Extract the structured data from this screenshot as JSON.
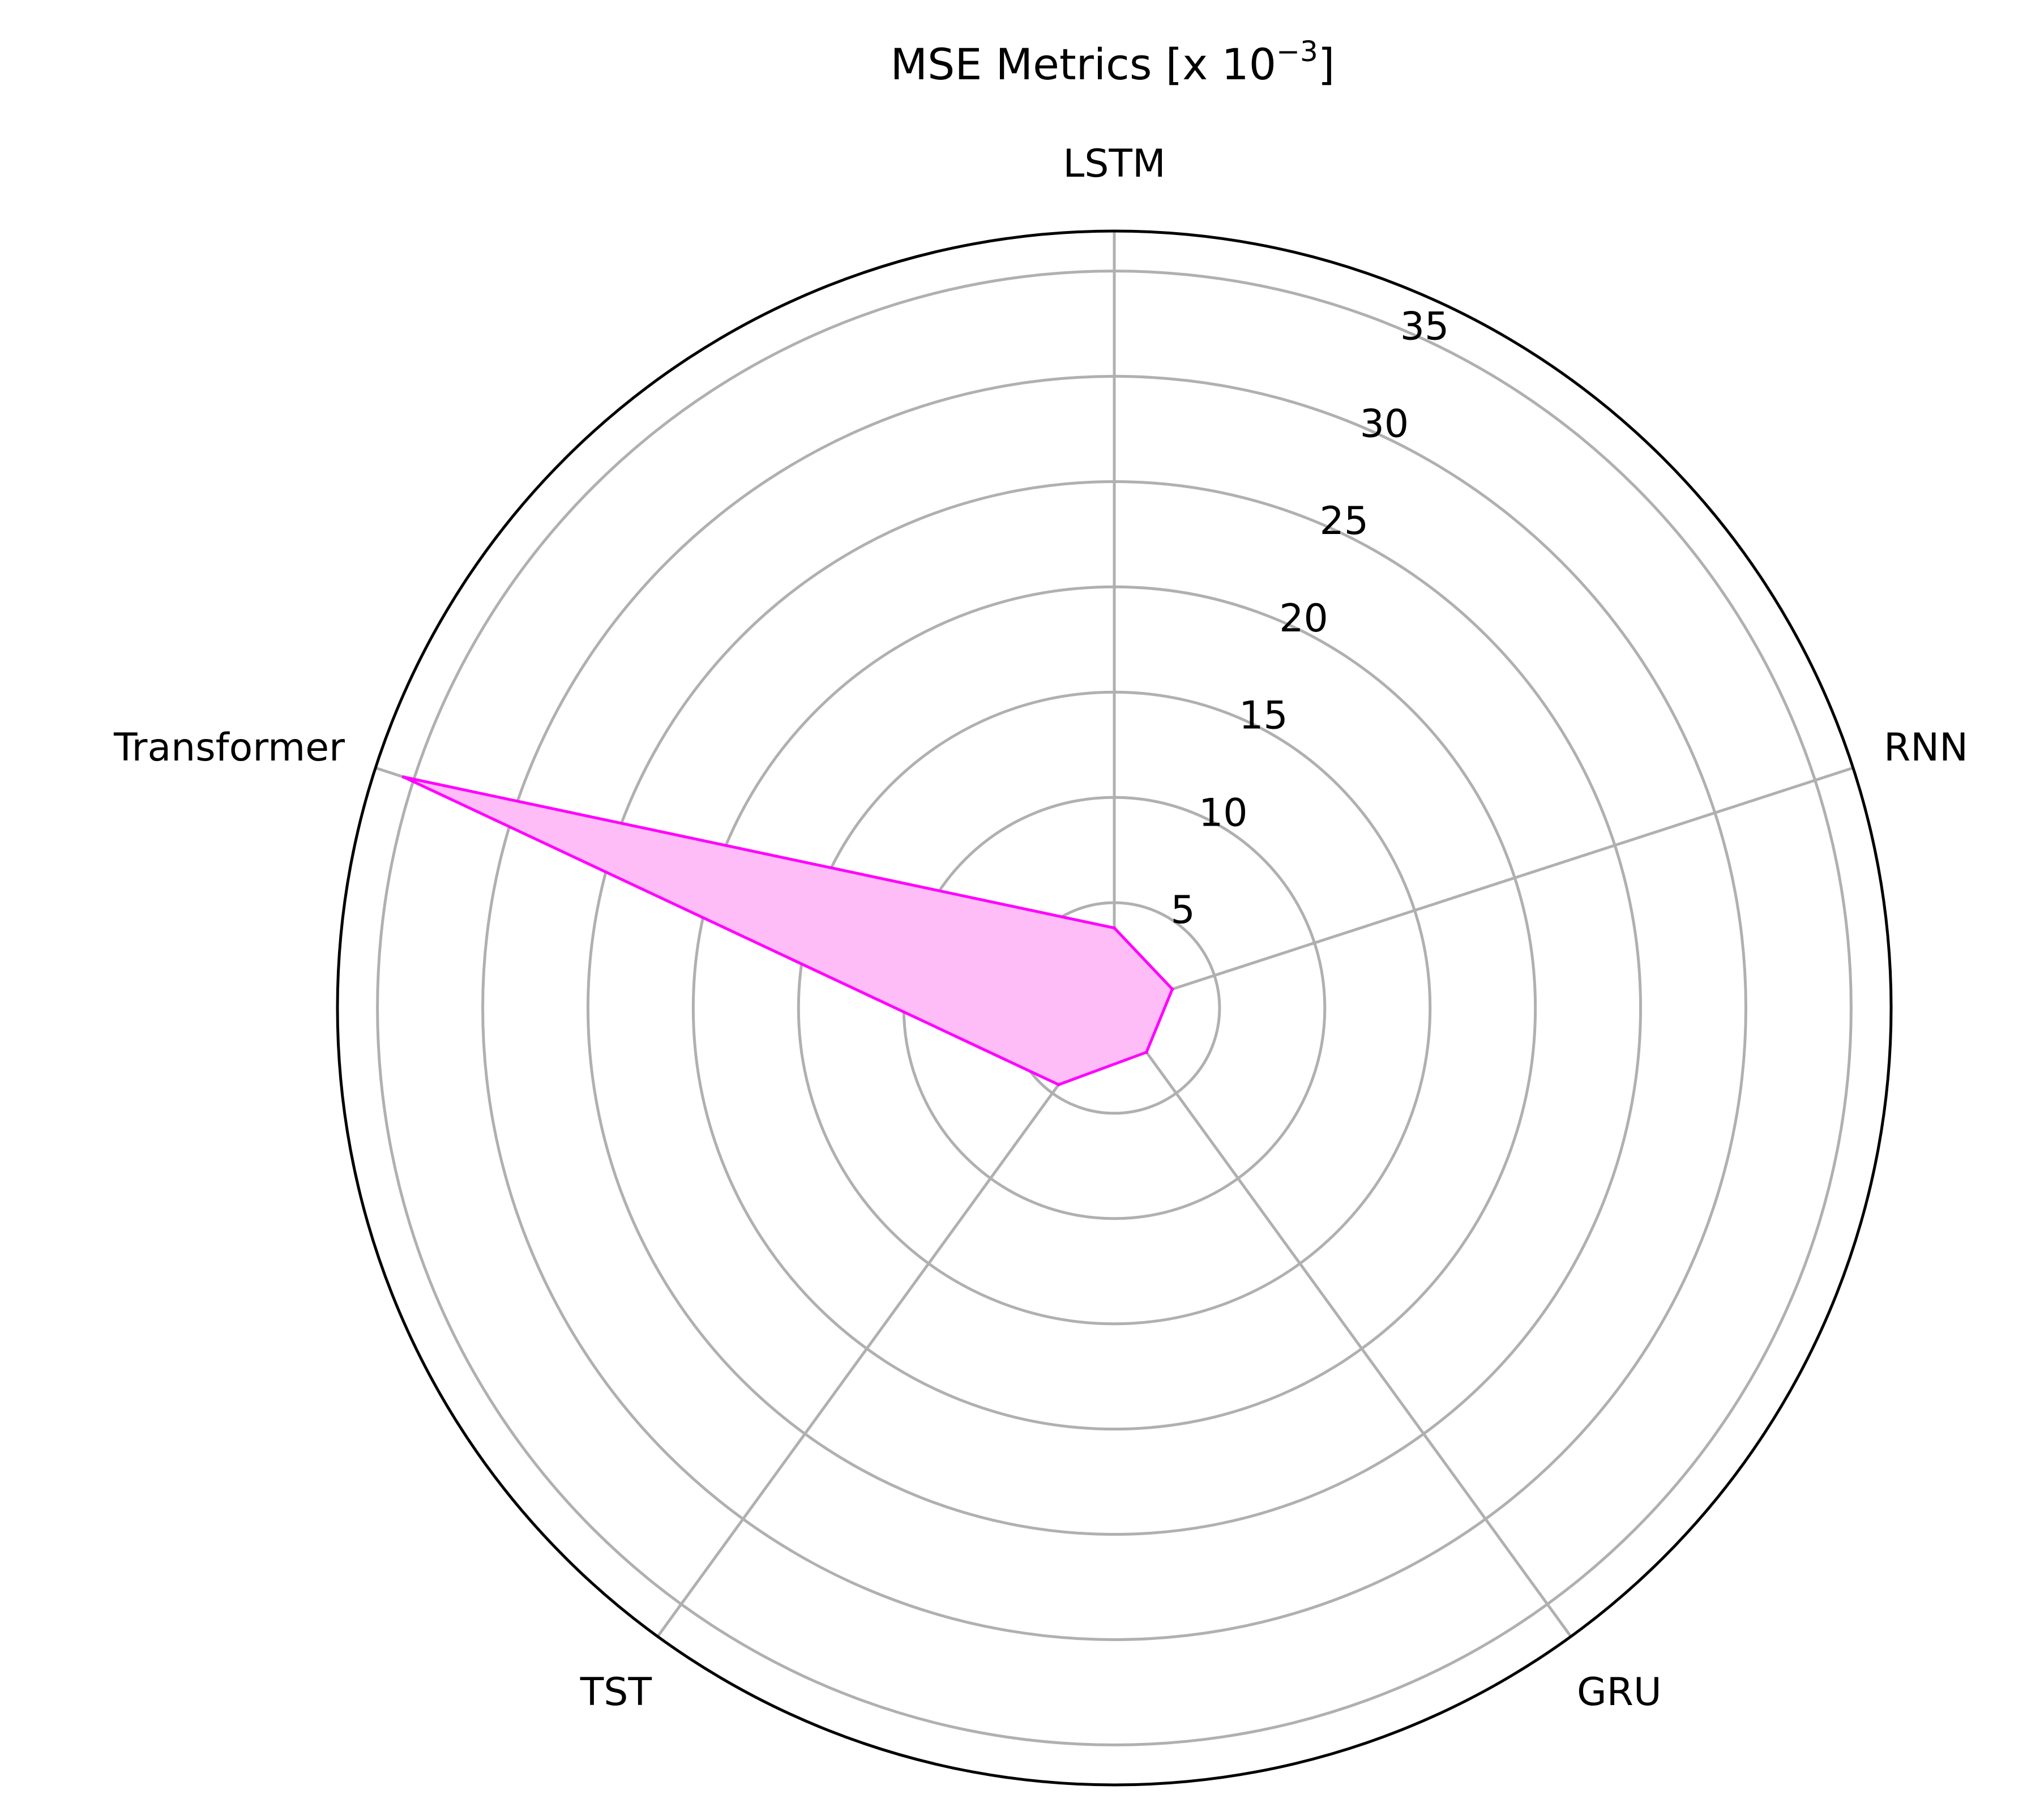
{
  "chart_data": {
    "type": "radar",
    "title": "MSE Metrics  [x 10",
    "title_sup": "−3",
    "title_end": "]",
    "categories": [
      "LSTM",
      "RNN",
      "GRU",
      "TST",
      "Transformer"
    ],
    "values": [
      3.8,
      2.9,
      2.6,
      4.5,
      35.5
    ],
    "rlim": [
      0,
      36.9
    ],
    "rticks": [
      5,
      10,
      15,
      20,
      25,
      30,
      35
    ],
    "grid": true,
    "series_color": "#ff00ff",
    "fill_color": "#ffbdf8"
  }
}
